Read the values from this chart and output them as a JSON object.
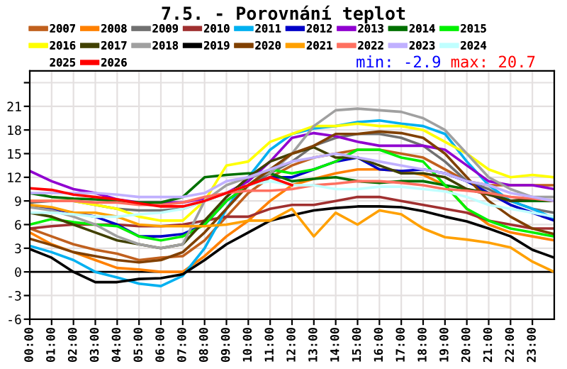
{
  "chart_data": {
    "type": "line",
    "title": "7.5. - Porovnání teplot",
    "x": [
      0,
      1,
      2,
      3,
      4,
      5,
      6,
      7,
      8,
      9,
      10,
      11,
      12,
      13,
      14,
      15,
      16,
      17,
      18,
      19,
      20,
      21,
      22,
      23,
      24
    ],
    "xlim": [
      0,
      24
    ],
    "xticks": [
      {
        "value": 0,
        "label": "00:00"
      },
      {
        "value": 1,
        "label": "01:00"
      },
      {
        "value": 2,
        "label": "02:00"
      },
      {
        "value": 3,
        "label": "03:00"
      },
      {
        "value": 4,
        "label": "04:00"
      },
      {
        "value": 5,
        "label": "05:00"
      },
      {
        "value": 6,
        "label": "06:00"
      },
      {
        "value": 7,
        "label": "07:00"
      },
      {
        "value": 8,
        "label": "08:00"
      },
      {
        "value": 9,
        "label": "09:00"
      },
      {
        "value": 10,
        "label": "10:00"
      },
      {
        "value": 11,
        "label": "11:00"
      },
      {
        "value": 12,
        "label": "12:00"
      },
      {
        "value": 13,
        "label": "13:00"
      },
      {
        "value": 14,
        "label": "14:00"
      },
      {
        "value": 15,
        "label": "15:00"
      },
      {
        "value": 16,
        "label": "16:00"
      },
      {
        "value": 17,
        "label": "17:00"
      },
      {
        "value": 18,
        "label": "18:00"
      },
      {
        "value": 19,
        "label": "19:00"
      },
      {
        "value": 20,
        "label": "20:00"
      },
      {
        "value": 21,
        "label": "21:00"
      },
      {
        "value": 22,
        "label": "22:00"
      },
      {
        "value": 23,
        "label": "23:00"
      }
    ],
    "ylim": [
      -6,
      25.5
    ],
    "yticks": [
      -6,
      -3,
      0,
      3,
      6,
      9,
      12,
      15,
      18,
      21,
      {
        "value": 24,
        "label": null
      }
    ],
    "grid": true,
    "legend": "top",
    "marker": "none",
    "line_style": "solid",
    "ref_lines": [
      {
        "axis": "y",
        "value": 0,
        "color": "#000000"
      }
    ],
    "annotations": [
      "min: -2.9",
      "max: 20.7"
    ],
    "series": [
      {
        "name": "2007",
        "color": "#c0601e",
        "values": [
          5.5,
          4.5,
          3.5,
          2.8,
          2.3,
          1.5,
          1.8,
          2,
          4,
          7,
          10,
          12,
          13.5,
          14.5,
          15,
          15.5,
          15.5,
          15,
          14.5,
          13,
          11.5,
          11,
          11,
          11,
          11
        ]
      },
      {
        "name": "2008",
        "color": "#ff8000",
        "values": [
          5,
          3.5,
          2.5,
          1.5,
          0.5,
          0.3,
          0,
          0,
          2,
          4.5,
          6.5,
          9,
          11,
          11.8,
          12.5,
          13,
          13,
          12.8,
          12.3,
          11,
          8,
          6,
          5,
          4.5,
          4
        ]
      },
      {
        "name": "2009",
        "color": "#707070",
        "values": [
          8.8,
          9,
          9,
          8.5,
          8,
          7.8,
          7.8,
          8,
          9,
          10,
          11,
          12.5,
          14,
          16,
          17,
          17.5,
          17.5,
          17,
          16,
          14,
          11.5,
          10.5,
          9,
          8,
          7.5
        ]
      },
      {
        "name": "2010",
        "color": "#a03030",
        "values": [
          5.5,
          5.8,
          6,
          6,
          6,
          5.8,
          5.8,
          6,
          6.5,
          7,
          7,
          8,
          8.5,
          8.5,
          9,
          9.5,
          9.5,
          9,
          8.5,
          8,
          7.5,
          6.5,
          6,
          5.5,
          5.5
        ]
      },
      {
        "name": "2011",
        "color": "#00b0f0",
        "values": [
          3.3,
          2.5,
          1.5,
          0,
          -0.7,
          -1.5,
          -1.8,
          -0.5,
          3,
          8,
          12,
          15.5,
          17.5,
          18.2,
          18.5,
          19,
          19.2,
          18.8,
          18.5,
          17.5,
          14,
          11,
          9,
          8,
          6.8
        ]
      },
      {
        "name": "2012",
        "color": "#0000c8",
        "values": [
          8.5,
          8,
          7.5,
          7,
          6,
          4.5,
          4.5,
          4.8,
          6,
          9,
          11,
          12,
          12,
          13,
          14,
          14.5,
          13,
          12.8,
          13,
          12.5,
          11.5,
          10,
          8.5,
          7.5,
          6.5
        ]
      },
      {
        "name": "2013",
        "color": "#9000d0",
        "values": [
          12.8,
          11.5,
          10.5,
          10,
          9.2,
          8.8,
          8.8,
          8.8,
          9.3,
          10,
          11.5,
          14,
          17,
          17.6,
          17.2,
          16.5,
          16,
          16,
          16,
          15.5,
          13.5,
          11.5,
          11,
          11,
          10.5
        ]
      },
      {
        "name": "2014",
        "color": "#007000",
        "values": [
          10,
          9.5,
          9.3,
          9.2,
          9,
          8.8,
          8.8,
          9.5,
          12,
          12.3,
          12.5,
          12.5,
          11.5,
          11.8,
          12,
          11.5,
          11.3,
          11.5,
          11.5,
          11,
          10.5,
          10,
          9,
          9,
          9
        ]
      },
      {
        "name": "2015",
        "color": "#00f000",
        "values": [
          6,
          6.7,
          6.3,
          6,
          5.8,
          4.5,
          4,
          4.5,
          6,
          9,
          11,
          13,
          12.5,
          13,
          14,
          15.5,
          15.5,
          14.5,
          14,
          11,
          8,
          6.5,
          5.5,
          5,
          4.5
        ]
      },
      {
        "name": "2016",
        "color": "#ffff00",
        "values": [
          9,
          9,
          9,
          8.5,
          8,
          7,
          6.5,
          6.5,
          9,
          13.5,
          14,
          16.5,
          17.5,
          18.5,
          18.5,
          18.8,
          18.5,
          18.5,
          18,
          16.5,
          15,
          13,
          12,
          12.3,
          12
        ]
      },
      {
        "name": "2017",
        "color": "#404000",
        "values": [
          7.5,
          7,
          6,
          5,
          4,
          3.5,
          3,
          3.5,
          6.5,
          9.5,
          12,
          14,
          15,
          15.8,
          14.5,
          14.5,
          13.5,
          12.5,
          12.5,
          12,
          10.5,
          9.8,
          9,
          9.3,
          9
        ]
      },
      {
        "name": "2018",
        "color": "#a0a0a0",
        "values": [
          8.2,
          7.8,
          7,
          6,
          4.5,
          3.5,
          3,
          3.5,
          9,
          11,
          12,
          12.5,
          15,
          18.5,
          20.5,
          20.7,
          20.5,
          20.3,
          19.5,
          18,
          15,
          12,
          10.5,
          9.5,
          9.5
        ]
      },
      {
        "name": "2019",
        "color": "#000000",
        "values": [
          2.9,
          1.8,
          0,
          -1.3,
          -1.3,
          -0.9,
          -0.8,
          -0.3,
          1.5,
          3.5,
          5,
          6.5,
          7.2,
          7.8,
          8.1,
          8.3,
          8.3,
          8.2,
          7.7,
          7,
          6.4,
          5.5,
          4.5,
          2.8,
          1.8
        ]
      },
      {
        "name": "2020",
        "color": "#804000",
        "values": [
          4.2,
          3.4,
          2.5,
          2,
          1.5,
          1.2,
          1.5,
          2.5,
          5,
          8,
          11,
          13,
          15,
          16,
          17.5,
          17.5,
          17.8,
          17.6,
          17,
          15,
          12,
          9,
          7,
          5.5,
          4.8
        ]
      },
      {
        "name": "2021",
        "color": "#ffa000",
        "values": [
          8.5,
          8.2,
          7.5,
          7.5,
          7,
          6,
          5.8,
          5.8,
          5.8,
          6,
          6.5,
          6.5,
          8,
          4.5,
          7.5,
          6,
          7.8,
          7.3,
          5.5,
          4.4,
          4.1,
          3.7,
          3.1,
          1.3,
          0
        ]
      },
      {
        "name": "2022",
        "color": "#ff7060",
        "values": [
          9,
          9,
          9,
          8.8,
          8.8,
          8.5,
          8.5,
          8.8,
          9.5,
          10,
          10.3,
          10.3,
          10.5,
          11,
          11.2,
          11.5,
          11.5,
          11.3,
          11,
          10.5,
          10.3,
          10,
          9.5,
          9.3,
          9
        ]
      },
      {
        "name": "2023",
        "color": "#c0b0ff",
        "values": [
          10,
          10,
          10,
          10,
          9.8,
          9.5,
          9.5,
          9.5,
          10,
          11.5,
          12,
          13,
          14,
          14.5,
          15,
          14.5,
          14,
          13.5,
          13,
          12.5,
          11.5,
          11,
          10,
          9.5,
          9
        ]
      },
      {
        "name": "2024",
        "color": "#c0ffff",
        "values": [
          7.5,
          7.5,
          7.3,
          7,
          7,
          7.3,
          7.5,
          8,
          9,
          10,
          11,
          11.5,
          11,
          11,
          10.5,
          10.5,
          10.8,
          10.8,
          10.5,
          10.2,
          9.5,
          8.5,
          8,
          7.5,
          7
        ]
      },
      {
        "name": "2025",
        "values": [
          null,
          null,
          null,
          null,
          null,
          null,
          null,
          null,
          null,
          null,
          null,
          null,
          null,
          null,
          null,
          null,
          null,
          null,
          null,
          null,
          null,
          null,
          null,
          null,
          null
        ]
      },
      {
        "name": "2026",
        "color": "#ff0000",
        "values": [
          10.6,
          10.4,
          9.8,
          9.5,
          9.2,
          8.7,
          8.3,
          8.3,
          9,
          10,
          11,
          12,
          11,
          null,
          null,
          null,
          null,
          null,
          null,
          null,
          null,
          null,
          null,
          null,
          null
        ]
      }
    ]
  }
}
